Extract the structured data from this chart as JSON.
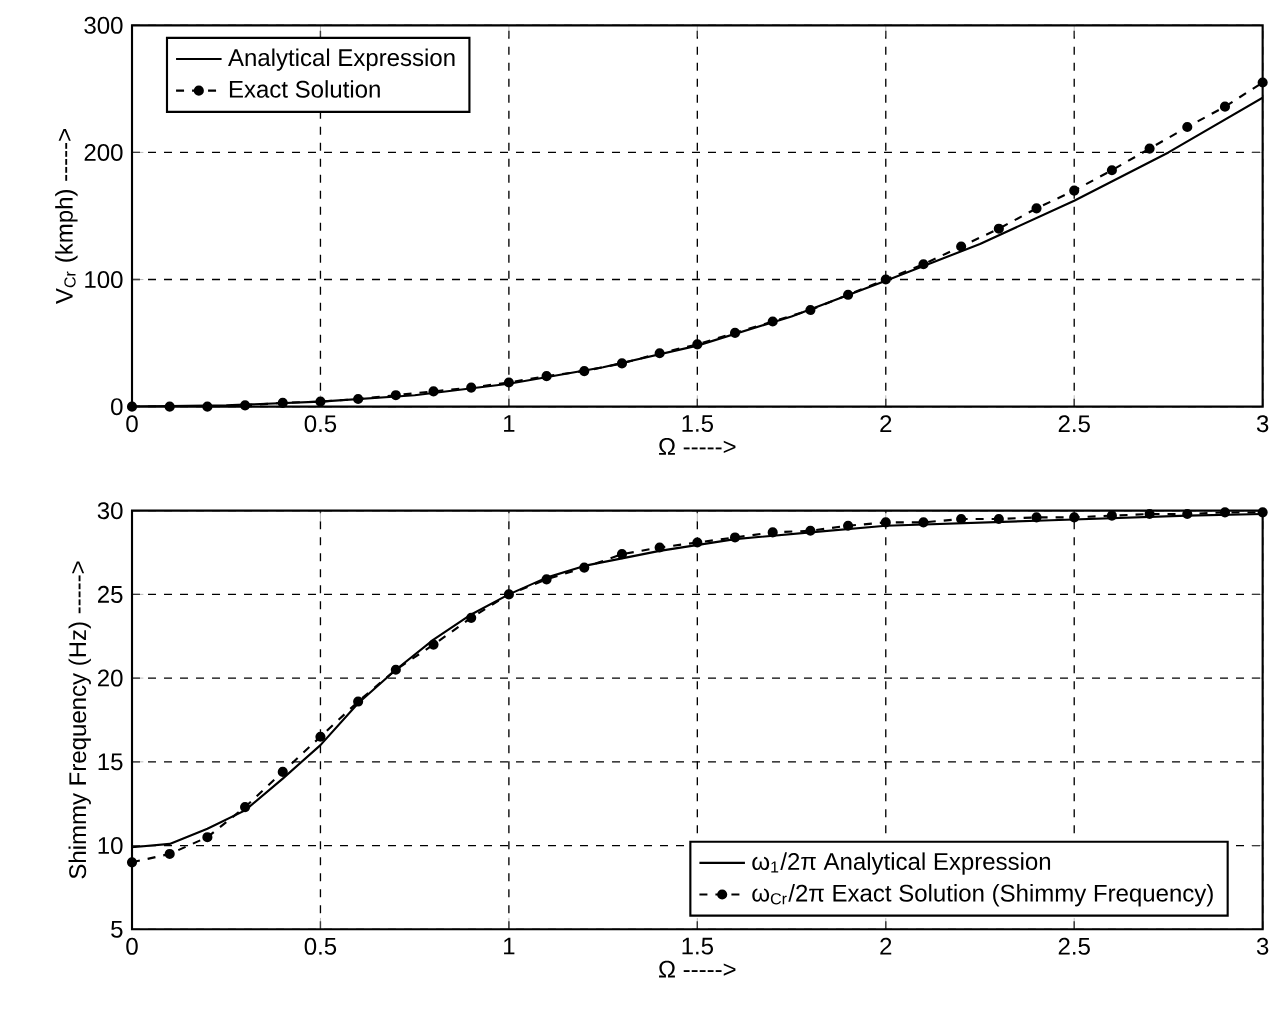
{
  "chart_data": [
    {
      "type": "line",
      "xlabel": "Ω ----->",
      "ylabel": "V$_{Cr}$ (kmph) ----->",
      "xlim": [
        0,
        3
      ],
      "ylim": [
        0,
        300
      ],
      "xticks": [
        0,
        0.5,
        1,
        1.5,
        2,
        2.5,
        3
      ],
      "yticks": [
        0,
        100,
        200,
        300
      ],
      "grid": true,
      "legend": "top left",
      "series": [
        {
          "name": "Analytical Expression",
          "color": "#000000",
          "line_style": "solid",
          "marker": "none",
          "x": [
            0,
            0.25,
            0.5,
            0.75,
            1,
            1.25,
            1.5,
            1.75,
            2,
            2.25,
            2.5,
            2.75,
            3
          ],
          "values": [
            0,
            1,
            4,
            9,
            18,
            31,
            48,
            71,
            99,
            128,
            162,
            200,
            243
          ]
        },
        {
          "name": "Exact Solution",
          "color": "#000000",
          "line_style": "dashed",
          "marker": "circle",
          "x": [
            0,
            0.1,
            0.2,
            0.3,
            0.4,
            0.5,
            0.6,
            0.7,
            0.8,
            0.9,
            1,
            1.1,
            1.2,
            1.3,
            1.4,
            1.5,
            1.6,
            1.7,
            1.8,
            1.9,
            2,
            2.1,
            2.2,
            2.3,
            2.4,
            2.5,
            2.6,
            2.7,
            2.8,
            2.9,
            3
          ],
          "values": [
            0,
            0,
            0,
            1,
            3,
            4,
            6,
            9,
            12,
            15,
            19,
            24,
            28,
            34,
            42,
            49,
            58,
            67,
            76,
            88,
            100,
            112,
            126,
            140,
            156,
            170,
            186,
            203,
            220,
            236,
            255
          ]
        }
      ]
    },
    {
      "type": "line",
      "xlabel": "Ω ----->",
      "ylabel": "Shimmy Frequency (Hz) ----->",
      "xlim": [
        0,
        3
      ],
      "ylim": [
        5,
        30
      ],
      "xticks": [
        0,
        0.5,
        1,
        1.5,
        2,
        2.5,
        3
      ],
      "yticks": [
        5,
        10,
        15,
        20,
        25,
        30
      ],
      "grid": true,
      "legend": "bottom right",
      "series": [
        {
          "name": "ω$_{1}$/2π Analytical Expression",
          "color": "#000000",
          "line_style": "solid",
          "marker": "none",
          "x": [
            0,
            0.1,
            0.2,
            0.3,
            0.4,
            0.5,
            0.6,
            0.7,
            0.8,
            0.9,
            1,
            1.1,
            1.2,
            1.4,
            1.6,
            1.8,
            2,
            2.4,
            2.8,
            3
          ],
          "values": [
            9.9,
            10.1,
            11,
            12.1,
            14,
            16,
            18.5,
            20.5,
            22.3,
            23.8,
            25,
            26,
            26.7,
            27.6,
            28.3,
            28.7,
            29.1,
            29.4,
            29.7,
            29.8
          ]
        },
        {
          "name": "ω$_{Cr}$/2π Exact Solution (Shimmy Frequency)",
          "color": "#000000",
          "line_style": "dashed",
          "marker": "circle",
          "x": [
            0,
            0.1,
            0.2,
            0.3,
            0.4,
            0.5,
            0.6,
            0.7,
            0.8,
            0.9,
            1,
            1.1,
            1.2,
            1.3,
            1.4,
            1.5,
            1.6,
            1.7,
            1.8,
            1.9,
            2,
            2.1,
            2.2,
            2.3,
            2.4,
            2.5,
            2.6,
            2.7,
            2.8,
            2.9,
            3
          ],
          "values": [
            9,
            9.5,
            10.5,
            12.3,
            14.4,
            16.5,
            18.6,
            20.5,
            22,
            23.6,
            25,
            25.9,
            26.6,
            27.4,
            27.8,
            28.1,
            28.4,
            28.7,
            28.8,
            29.1,
            29.3,
            29.3,
            29.5,
            29.5,
            29.6,
            29.6,
            29.7,
            29.8,
            29.8,
            29.9,
            29.9
          ]
        }
      ]
    }
  ]
}
